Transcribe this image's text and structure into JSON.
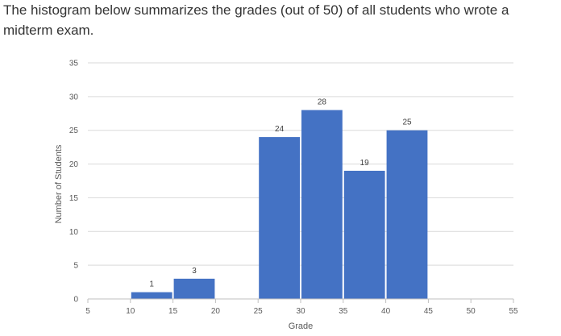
{
  "intro_text": "The histogram below summarizes the grades (out of 50) of all students who wrote a midterm exam.",
  "chart_data": {
    "type": "bar",
    "subtype": "histogram",
    "xlabel": "Grade",
    "ylabel": "Number of Students",
    "xlim": [
      5,
      55
    ],
    "ylim": [
      0,
      35
    ],
    "x_ticks": [
      5,
      10,
      15,
      20,
      25,
      30,
      35,
      40,
      45,
      50,
      55
    ],
    "y_ticks": [
      0,
      5,
      10,
      15,
      20,
      25,
      30,
      35
    ],
    "bins": [
      {
        "from": 10,
        "to": 15,
        "value": 1
      },
      {
        "from": 15,
        "to": 20,
        "value": 3
      },
      {
        "from": 25,
        "to": 30,
        "value": 24
      },
      {
        "from": 30,
        "to": 35,
        "value": 28
      },
      {
        "from": 35,
        "to": 40,
        "value": 19
      },
      {
        "from": 40,
        "to": 45,
        "value": 25
      }
    ],
    "grid": true,
    "bar_color": "#4472C4",
    "grid_color": "#D9D9D9",
    "axis_color": "#BFBFBF",
    "data_labels": true
  }
}
